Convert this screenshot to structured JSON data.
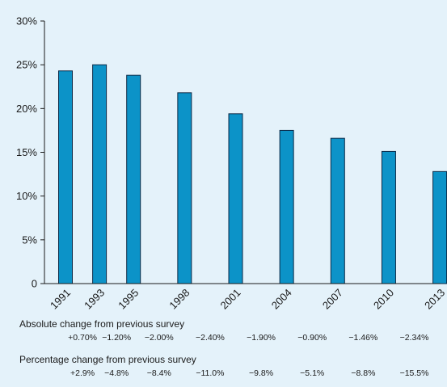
{
  "chart_data": {
    "type": "bar",
    "categories": [
      "1991",
      "1993",
      "1995",
      "1998",
      "2001",
      "2004",
      "2007",
      "2010",
      "2013"
    ],
    "values": [
      24.3,
      25.0,
      23.8,
      21.8,
      19.4,
      17.5,
      16.6,
      15.1,
      12.8
    ],
    "y_ticks": [
      "0",
      "5%",
      "10%",
      "15%",
      "20%",
      "25%",
      "30%"
    ],
    "ylim": [
      0,
      30
    ],
    "bar_color": "#0c93c8",
    "bar_stroke": "#0b2a47",
    "grid": false
  },
  "tables": {
    "absolute": {
      "title": "Absolute change from previous survey",
      "values": [
        "+0.70%",
        "−1.20%",
        "−2.00%",
        "−2.40%",
        "−1.90%",
        "−0.90%",
        "−1.46%",
        "−2.34%"
      ]
    },
    "percentage": {
      "title": "Percentage change from previous survey",
      "values": [
        "+2.9%",
        "−4.8%",
        "−8.4%",
        "−11.0%",
        "−9.8%",
        "−5.1%",
        "−8.8%",
        "−15.5%"
      ]
    }
  }
}
